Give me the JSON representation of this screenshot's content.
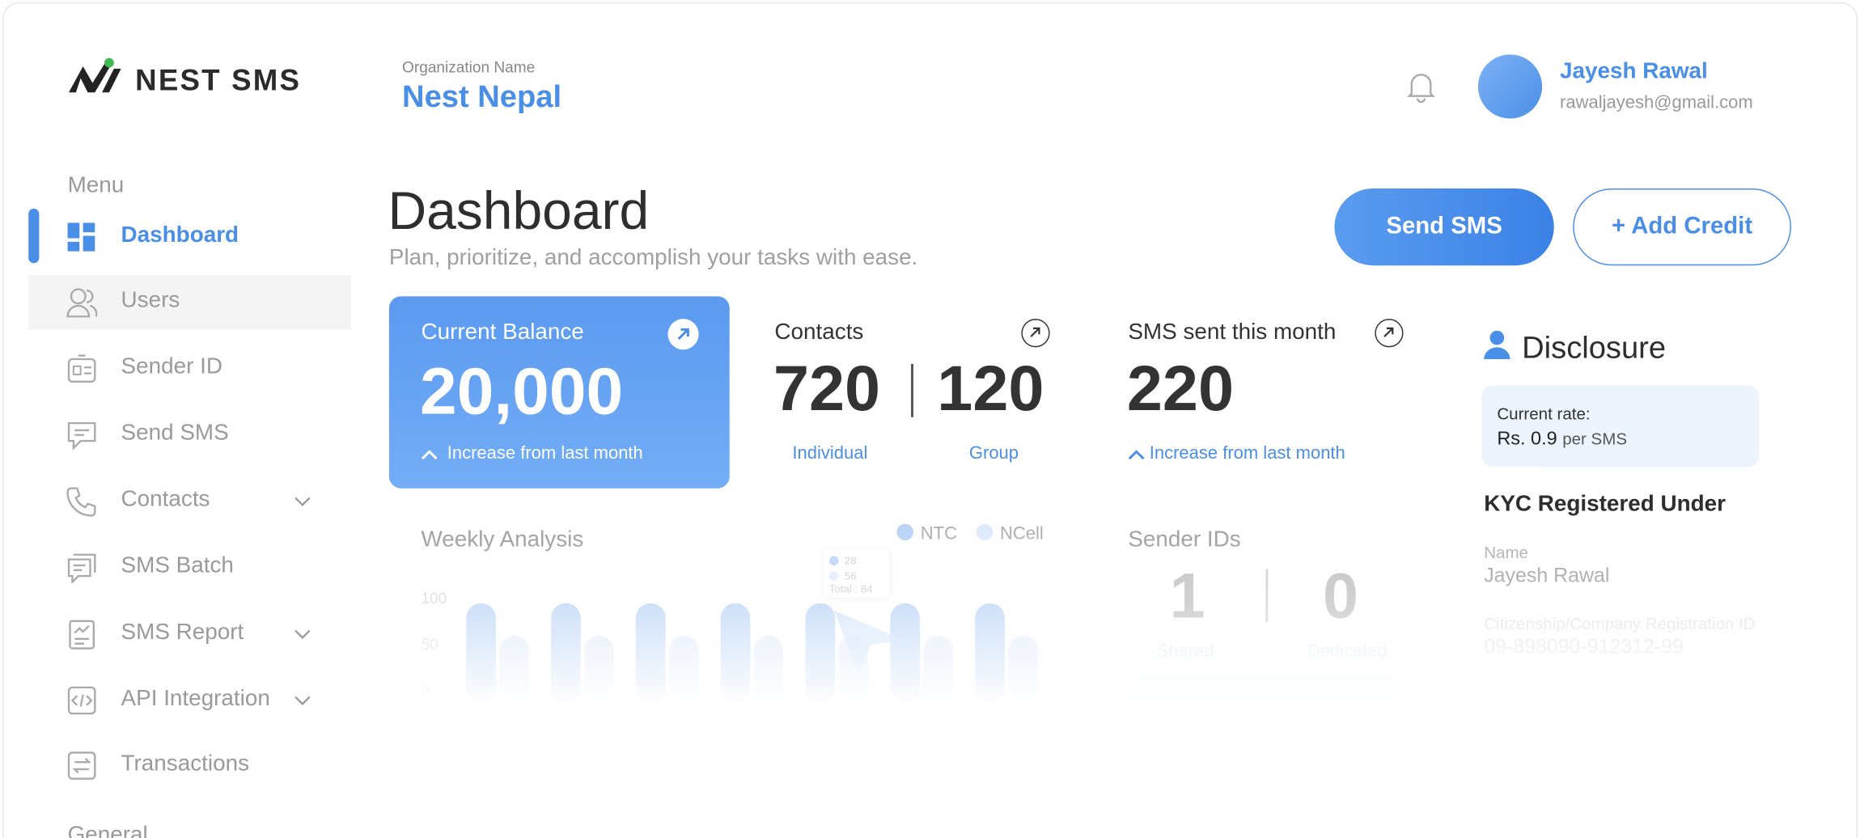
{
  "brand": "NEST SMS",
  "header": {
    "org_label": "Organization Name",
    "org_name": "Nest Nepal",
    "user_name": "Jayesh Rawal",
    "user_email": "rawaljayesh@gmail.com"
  },
  "sidebar": {
    "menu_label": "Menu",
    "items": [
      "Dashboard",
      "Users",
      "Sender ID",
      "Send SMS",
      "Contacts",
      "SMS Batch",
      "SMS Report",
      "API Integration",
      "Transactions"
    ],
    "general_label": "General"
  },
  "page": {
    "title": "Dashboard",
    "subtitle": "Plan, prioritize, and accomplish your tasks with ease.",
    "buttons": [
      "Send SMS",
      "+ Add Credit"
    ]
  },
  "cards": {
    "balance": {
      "label": "Current Balance",
      "value": "20,000",
      "note": "Increase from last month"
    },
    "contacts": {
      "label": "Contacts",
      "individual": 720,
      "group": 120,
      "individual_label": "Individual",
      "group_label": "Group"
    },
    "sms_sent": {
      "label": "SMS sent this month",
      "value": 220,
      "note": "Increase from last month"
    }
  },
  "weekly_analysis": {
    "title": "Weekly Analysis",
    "ylim": [
      0,
      100
    ],
    "yticks": [
      0,
      50,
      100
    ],
    "series": [
      {
        "name": "NTC",
        "color": "#a9c9f5",
        "values": [
          95,
          95,
          95,
          95,
          95,
          95,
          95
        ]
      },
      {
        "name": "NCell",
        "color": "#d6e6fb",
        "values": [
          60,
          60,
          60,
          60,
          60,
          60,
          60
        ]
      }
    ],
    "tooltip": {
      "values": [
        28,
        56
      ],
      "total_label": "Total : 84"
    }
  },
  "sender_ids": {
    "title": "Sender IDs",
    "shared": 1,
    "dedicated": 0,
    "shared_label": "Shared",
    "dedicated_label": "Dedicated"
  },
  "disclosure": {
    "title": "Disclosure",
    "rate_label": "Current rate:",
    "rate_value": "Rs. 0.9",
    "rate_unit": "per SMS",
    "kyc_title": "KYC Registered Under",
    "fields": [
      {
        "label": "Name",
        "value": "Jayesh Rawal"
      },
      {
        "label": "Citizenship/Company Registration ID",
        "value": "09-898090-912312-99"
      }
    ]
  }
}
